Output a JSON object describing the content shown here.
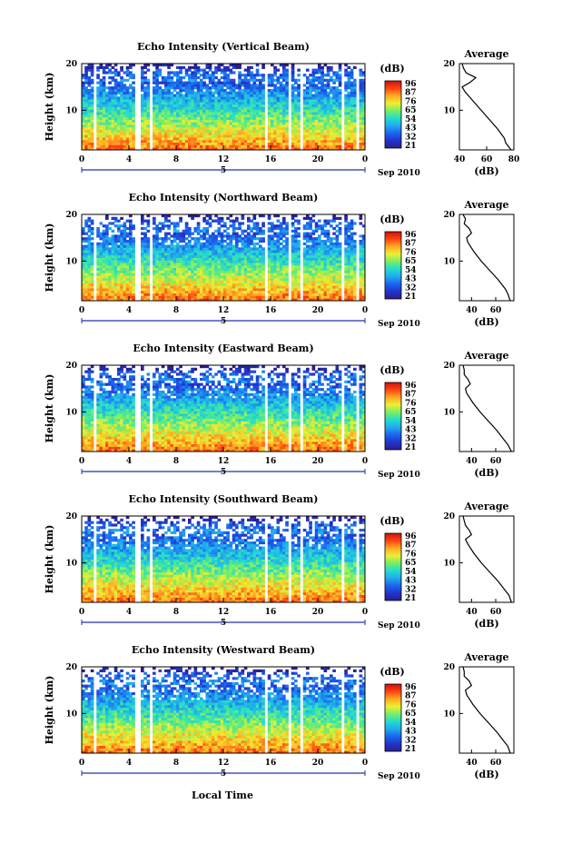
{
  "figure": {
    "xlabel": "Local Time",
    "date_label": "Sep 2010",
    "day_label": "5",
    "height_label": "Height (km)",
    "colorbar_unit": "(dB)",
    "colorbar_ticks": [
      "96",
      "87",
      "76",
      "65",
      "54",
      "43",
      "32",
      "21"
    ],
    "avg_title": "Average",
    "avg_xlabel": "(dB)",
    "time_ticks": [
      "0",
      "4",
      "8",
      "12",
      "16",
      "20",
      "0"
    ],
    "height_ticks": [
      "20",
      "10"
    ],
    "gap_hours": [
      [
        1.0,
        1.3
      ],
      [
        4.4,
        4.95
      ],
      [
        5.8,
        6.1
      ],
      [
        15.5,
        15.75
      ],
      [
        17.6,
        17.75
      ],
      [
        18.6,
        18.85
      ],
      [
        20.4,
        20.6
      ],
      [
        21.9,
        22.3
      ],
      [
        23.3,
        23.5
      ]
    ]
  },
  "colors": {
    "colormap": [
      "#2a1f8c",
      "#2233cc",
      "#1a66ee",
      "#22aaee",
      "#22ddcc",
      "#77ee66",
      "#eeee33",
      "#ffaa22",
      "#ff4411",
      "#cc1111"
    ],
    "line": "#000000",
    "axis_blue": "#2233aa"
  },
  "chart_data": [
    {
      "type": "heatmap",
      "title": "Echo Intensity (Vertical Beam)",
      "x_range_hours": [
        0,
        24
      ],
      "y_range_km": [
        1.5,
        20
      ],
      "color_range_db": [
        21,
        96
      ],
      "average_profile": {
        "xticks": [
          "40",
          "60",
          "80"
        ],
        "xlim": [
          40,
          80
        ],
        "height_km": [
          1.5,
          3,
          4,
          6,
          8,
          10,
          12,
          14,
          15,
          16,
          17,
          18,
          19,
          20
        ],
        "db": [
          78,
          74,
          73,
          68,
          62,
          56,
          50,
          44,
          42,
          48,
          52,
          45,
          43,
          42
        ]
      }
    },
    {
      "type": "heatmap",
      "title": "Echo Intensity (Northward Beam)",
      "x_range_hours": [
        0,
        24
      ],
      "y_range_km": [
        1.5,
        20
      ],
      "color_range_db": [
        21,
        96
      ],
      "average_profile": {
        "xticks": [
          "40",
          "60"
        ],
        "xlim": [
          30,
          75
        ],
        "height_km": [
          1.5,
          3,
          4,
          6,
          8,
          10,
          12,
          14,
          15,
          16,
          17,
          18,
          19,
          20
        ],
        "db": [
          72,
          70,
          68,
          62,
          55,
          48,
          42,
          37,
          36,
          40,
          38,
          34,
          35,
          33
        ]
      }
    },
    {
      "type": "heatmap",
      "title": "Echo Intensity (Eastward Beam)",
      "x_range_hours": [
        0,
        24
      ],
      "y_range_km": [
        1.5,
        20
      ],
      "color_range_db": [
        21,
        96
      ],
      "average_profile": {
        "xticks": [
          "40",
          "60"
        ],
        "xlim": [
          30,
          75
        ],
        "height_km": [
          1.5,
          3,
          4,
          6,
          8,
          10,
          12,
          14,
          15,
          16,
          17,
          18,
          19,
          20
        ],
        "db": [
          73,
          70,
          67,
          61,
          54,
          47,
          41,
          36,
          35,
          39,
          37,
          34,
          34,
          33
        ]
      }
    },
    {
      "type": "heatmap",
      "title": "Echo Intensity (Southward Beam)",
      "x_range_hours": [
        0,
        24
      ],
      "y_range_km": [
        1.5,
        20
      ],
      "color_range_db": [
        21,
        96
      ],
      "average_profile": {
        "xticks": [
          "40",
          "60"
        ],
        "xlim": [
          30,
          75
        ],
        "height_km": [
          1.5,
          3,
          4,
          6,
          8,
          10,
          12,
          14,
          15,
          16,
          17,
          18,
          19,
          20
        ],
        "db": [
          73,
          71,
          68,
          62,
          55,
          48,
          42,
          37,
          35,
          40,
          38,
          35,
          34,
          33
        ]
      }
    },
    {
      "type": "heatmap",
      "title": "Echo Intensity (Westward Beam)",
      "x_range_hours": [
        0,
        24
      ],
      "y_range_km": [
        1.5,
        20
      ],
      "color_range_db": [
        21,
        96
      ],
      "average_profile": {
        "xticks": [
          "40",
          "60"
        ],
        "xlim": [
          30,
          75
        ],
        "height_km": [
          1.5,
          3,
          4,
          6,
          8,
          10,
          12,
          14,
          15,
          16,
          17,
          18,
          19,
          20
        ],
        "db": [
          72,
          70,
          67,
          61,
          54,
          47,
          41,
          36,
          35,
          40,
          38,
          34,
          34,
          33
        ]
      }
    }
  ]
}
